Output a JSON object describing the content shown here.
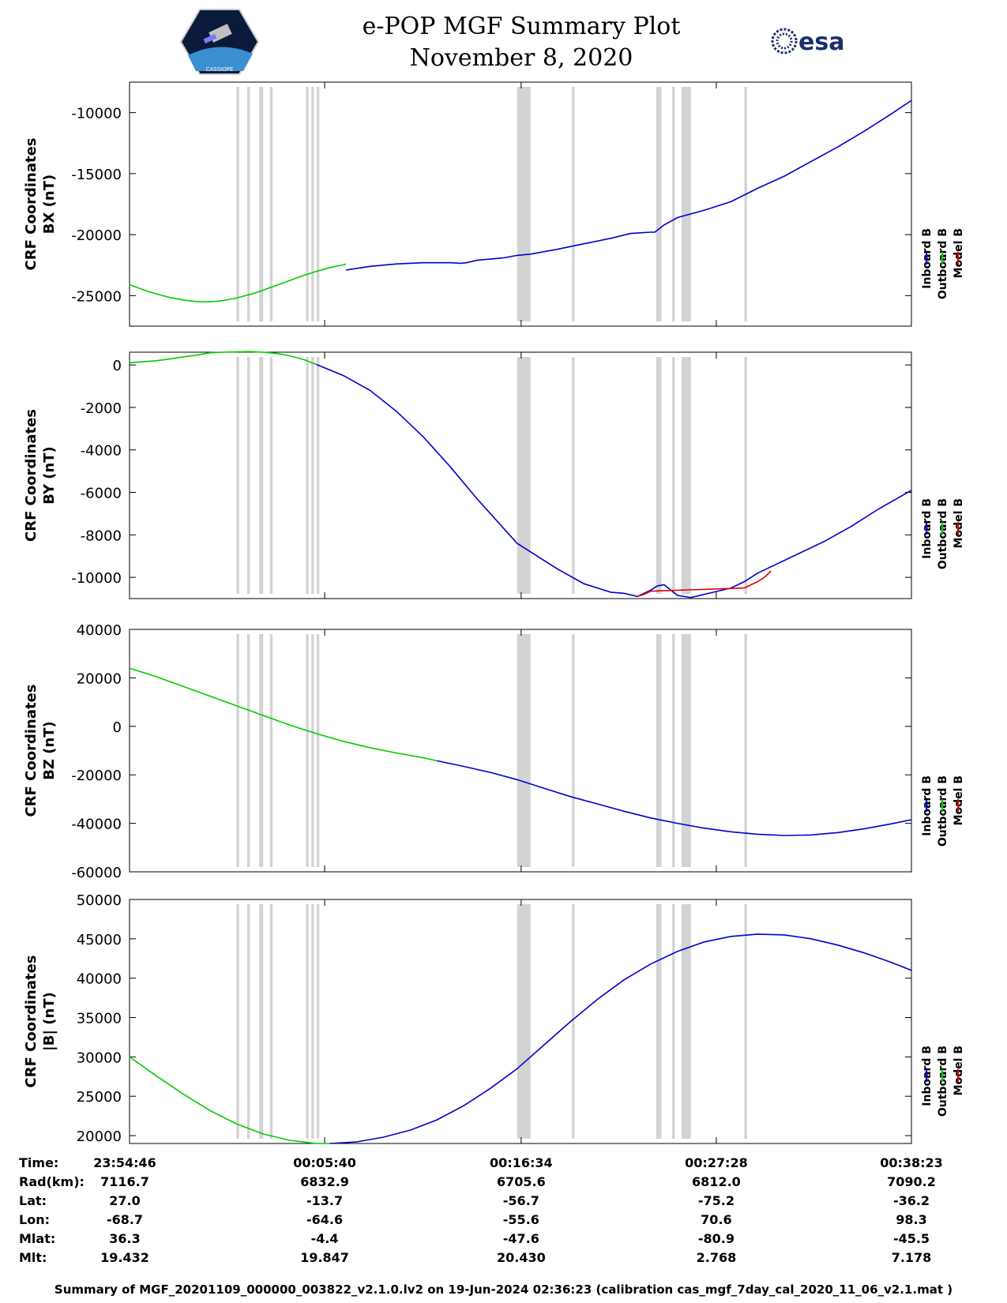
{
  "header": {
    "title_line1": "e-POP MGF Summary Plot",
    "title_line2": "November 8, 2020",
    "left_logo_text": "CASSIOPE",
    "right_logo_text": "esa"
  },
  "colors": {
    "inboard": "#0000cc",
    "outboard": "#00cc00",
    "model": "#dd0000",
    "gap_bands": "#d3d3d3"
  },
  "chart_data": [
    {
      "type": "line",
      "ylabel_line1": "CRF Coordinates",
      "ylabel_line2": "BX (nT)",
      "ylim": [
        -27500,
        -7500
      ],
      "yticks": [
        -10000,
        -15000,
        -20000,
        -25000
      ],
      "legend": [
        "Inboard B",
        "Outboard B",
        "Model B"
      ],
      "series": [
        {
          "name": "Outboard B",
          "color": "#00cc00",
          "x": [
            0,
            0.05,
            0.1,
            0.15,
            0.2,
            0.25,
            0.3,
            0.35,
            0.4,
            0.45,
            0.5,
            0.55,
            0.6,
            0.65,
            0.7,
            0.75,
            0.8,
            0.85,
            0.9,
            0.95,
            1.0,
            1.05,
            1.1,
            1.15,
            1.2,
            1.25,
            1.3,
            1.35,
            1.4,
            1.45,
            1.5,
            1.55,
            1.6,
            1.62
          ],
          "y": [
            -24100,
            -24300,
            -24500,
            -24700,
            -24850,
            -25000,
            -25150,
            -25250,
            -25350,
            -25420,
            -25480,
            -25500,
            -25500,
            -25470,
            -25400,
            -25300,
            -25200,
            -25050,
            -24900,
            -24750,
            -24550,
            -24350,
            -24150,
            -23950,
            -23750,
            -23550,
            -23350,
            -23180,
            -23000,
            -22850,
            -22700,
            -22580,
            -22480,
            -22400
          ]
        },
        {
          "name": "Inboard B",
          "color": "#0000cc",
          "x": [
            1.62,
            1.8,
            2.0,
            2.2,
            2.4,
            2.48,
            2.52,
            2.6,
            2.8,
            2.9,
            3.0,
            3.2,
            3.4,
            3.6,
            3.75,
            3.9,
            3.93,
            4.0,
            4.1,
            4.3,
            4.5,
            4.7,
            4.9,
            5.1,
            5.3,
            5.5,
            5.7,
            5.85
          ],
          "y": [
            -22900,
            -22600,
            -22400,
            -22300,
            -22300,
            -22350,
            -22300,
            -22100,
            -21900,
            -21700,
            -21600,
            -21200,
            -20750,
            -20300,
            -19900,
            -19800,
            -19800,
            -19200,
            -18600,
            -18000,
            -17300,
            -16200,
            -15200,
            -14000,
            -12800,
            -11500,
            -10100,
            -9000
          ]
        }
      ]
    },
    {
      "type": "line",
      "ylabel_line1": "CRF Coordinates",
      "ylabel_line2": "BY (nT)",
      "ylim": [
        -11000,
        600
      ],
      "yticks": [
        0,
        -2000,
        -4000,
        -6000,
        -8000,
        -10000
      ],
      "legend": [
        "Inboard B",
        "Outboard B",
        "Model B"
      ],
      "series": [
        {
          "name": "Outboard B",
          "color": "#00cc00",
          "x": [
            0,
            0.1,
            0.2,
            0.3,
            0.4,
            0.5,
            0.6,
            0.7,
            0.8,
            0.9,
            1.0,
            1.1,
            1.2,
            1.3,
            1.4
          ],
          "y": [
            100,
            150,
            200,
            280,
            380,
            460,
            570,
            600,
            620,
            630,
            600,
            540,
            430,
            260,
            20
          ]
        },
        {
          "name": "Inboard B",
          "color": "#0000cc",
          "x": [
            1.4,
            1.6,
            1.8,
            2.0,
            2.2,
            2.4,
            2.6,
            2.8,
            2.9,
            3.0,
            3.2,
            3.4,
            3.6,
            3.7,
            3.8,
            3.9,
            3.95,
            4.0,
            4.1,
            4.2,
            4.3,
            4.4,
            4.5,
            4.6,
            4.7,
            4.8,
            4.9,
            5.0,
            5.2,
            5.4,
            5.6,
            5.85
          ],
          "y": [
            20,
            -500,
            -1200,
            -2200,
            -3400,
            -4800,
            -6300,
            -7700,
            -8400,
            -8800,
            -9600,
            -10300,
            -10700,
            -10750,
            -10900,
            -10600,
            -10400,
            -10350,
            -10850,
            -10950,
            -10800,
            -10650,
            -10500,
            -10200,
            -9800,
            -9500,
            -9200,
            -8900,
            -8300,
            -7600,
            -6800,
            -5900
          ]
        },
        {
          "name": "Model B",
          "color": "#dd0000",
          "x": [
            3.8,
            3.85,
            3.9,
            4.6,
            4.65,
            4.7,
            4.75,
            4.8
          ],
          "y": [
            -10900,
            -10800,
            -10650,
            -10500,
            -10350,
            -10200,
            -10000,
            -9700
          ]
        }
      ]
    },
    {
      "type": "line",
      "ylabel_line1": "CRF Coordinates",
      "ylabel_line2": "BZ (nT)",
      "ylim": [
        -60000,
        40000
      ],
      "yticks": [
        40000,
        20000,
        0,
        -20000,
        -40000,
        -60000
      ],
      "legend": [
        "Inboard B",
        "Outboard B",
        "Model B"
      ],
      "series": [
        {
          "name": "Outboard B",
          "color": "#00cc00",
          "x": [
            0,
            0.2,
            0.4,
            0.6,
            0.8,
            1.0,
            1.2,
            1.4,
            1.6,
            1.8,
            2.0,
            2.2,
            2.3
          ],
          "y": [
            24000,
            20500,
            16500,
            12500,
            8500,
            4500,
            500,
            -3000,
            -6200,
            -8800,
            -11000,
            -13000,
            -14200
          ]
        },
        {
          "name": "Inboard B",
          "color": "#0000cc",
          "x": [
            2.3,
            2.5,
            2.7,
            2.9,
            3.1,
            3.3,
            3.5,
            3.7,
            3.9,
            4.1,
            4.3,
            4.5,
            4.7,
            4.9,
            5.1,
            5.3,
            5.5,
            5.7,
            5.85
          ],
          "y": [
            -14200,
            -16500,
            -19000,
            -22000,
            -25500,
            -29000,
            -32000,
            -35000,
            -37800,
            -40000,
            -42000,
            -43500,
            -44500,
            -45000,
            -44800,
            -43800,
            -42200,
            -40200,
            -38500
          ]
        }
      ]
    },
    {
      "type": "line",
      "ylabel_line1": "CRF Coordinates",
      "ylabel_line2": "|B| (nT)",
      "ylim": [
        19000,
        50000
      ],
      "yticks": [
        50000,
        45000,
        40000,
        35000,
        30000,
        25000,
        20000
      ],
      "legend": [
        "Inboard B",
        "Outboard B",
        "Model B"
      ],
      "series": [
        {
          "name": "Outboard B",
          "color": "#00cc00",
          "x": [
            0,
            0.2,
            0.4,
            0.6,
            0.8,
            1.0,
            1.2,
            1.4,
            1.5
          ],
          "y": [
            30000,
            27600,
            25300,
            23200,
            21500,
            20200,
            19400,
            19000,
            19000
          ]
        },
        {
          "name": "Inboard B",
          "color": "#0000cc",
          "x": [
            1.5,
            1.7,
            1.9,
            2.1,
            2.3,
            2.5,
            2.7,
            2.9,
            3.1,
            3.3,
            3.5,
            3.7,
            3.9,
            4.1,
            4.3,
            4.5,
            4.7,
            4.9,
            5.1,
            5.3,
            5.5,
            5.7,
            5.85
          ],
          "y": [
            19000,
            19200,
            19800,
            20700,
            22000,
            23800,
            26000,
            28500,
            31500,
            34500,
            37300,
            39800,
            41800,
            43400,
            44600,
            45300,
            45600,
            45500,
            45000,
            44200,
            43200,
            42000,
            41000
          ]
        }
      ]
    }
  ],
  "gap_bands": [
    {
      "x0": 0.8,
      "x1": 0.82
    },
    {
      "x0": 0.88,
      "x1": 0.9
    },
    {
      "x0": 0.97,
      "x1": 1.0
    },
    {
      "x0": 1.05,
      "x1": 1.07
    },
    {
      "x0": 1.32,
      "x1": 1.34
    },
    {
      "x0": 1.36,
      "x1": 1.38
    },
    {
      "x0": 1.4,
      "x1": 1.42
    },
    {
      "x0": 2.9,
      "x1": 3.0
    },
    {
      "x0": 3.31,
      "x1": 3.33
    },
    {
      "x0": 3.94,
      "x1": 3.98
    },
    {
      "x0": 4.06,
      "x1": 4.08
    },
    {
      "x0": 4.13,
      "x1": 4.2
    },
    {
      "x0": 4.6,
      "x1": 4.62
    }
  ],
  "x_axis": {
    "xlim": [
      0,
      5.85
    ],
    "ticks": [
      0,
      1.46,
      2.93,
      4.39,
      5.85
    ]
  },
  "info_table": {
    "labels": [
      "Time:",
      "Rad(km):",
      "Lat:",
      "Lon:",
      "Mlat:",
      "Mlt:"
    ],
    "columns": [
      [
        "23:54:46",
        "7116.7",
        "27.0",
        "-68.7",
        "36.3",
        "19.432"
      ],
      [
        "00:05:40",
        "6832.9",
        "-13.7",
        "-64.6",
        "-4.4",
        "19.847"
      ],
      [
        "00:16:34",
        "6705.6",
        "-56.7",
        "-55.6",
        "-47.6",
        "20.430"
      ],
      [
        "00:27:28",
        "6812.0",
        "-75.2",
        "70.6",
        "-80.9",
        "2.768"
      ],
      [
        "00:38:23",
        "7090.2",
        "-36.2",
        "98.3",
        "-45.5",
        "7.178"
      ]
    ]
  },
  "footer": "Summary of MGF_20201109_000000_003822_v2.1.0.lv2 on 19-Jun-2024 02:36:23 (calibration cas_mgf_7day_cal_2020_11_06_v2.1.mat )"
}
